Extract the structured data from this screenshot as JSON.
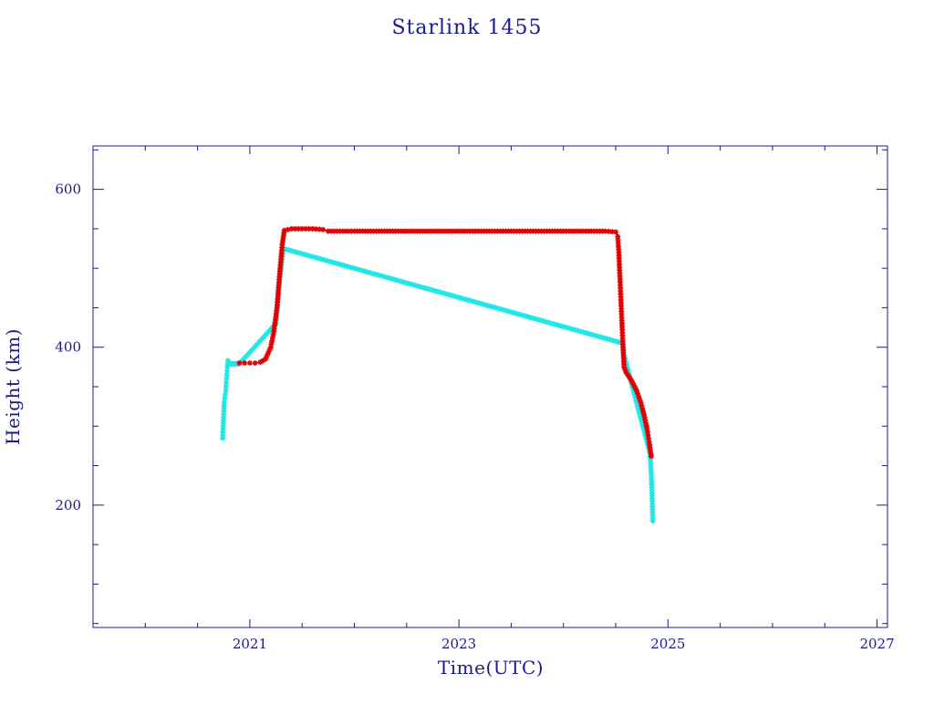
{
  "chart_data": {
    "type": "scatter",
    "title": "Starlink 1455",
    "xlabel": "Time(UTC)",
    "ylabel": "Height (km)",
    "xlim": [
      2019.5,
      2027.1
    ],
    "ylim": [
      45,
      655
    ],
    "x_ticks": [
      2021,
      2023,
      2025,
      2027
    ],
    "x_tick_labels": [
      "2021",
      "2023",
      "2025",
      "2027"
    ],
    "x_minor_step": 0.5,
    "y_ticks": [
      200,
      400,
      600
    ],
    "y_tick_labels": [
      "200",
      "400",
      "600"
    ],
    "y_minor_step": 50,
    "grid": false,
    "colors": {
      "axis": "#1a1a8c",
      "text": "#1a1a8c",
      "line": "#222222",
      "series_red": "#e00000",
      "series_cyan": "#22e6e6"
    },
    "series": [
      {
        "color": "cyan",
        "marker": "asterisk",
        "points": [
          [
            2020.74,
            285
          ],
          [
            2020.745,
            300
          ],
          [
            2020.75,
            315
          ],
          [
            2020.755,
            330
          ],
          [
            2020.76,
            335
          ],
          [
            2020.765,
            340
          ],
          [
            2020.77,
            345
          ],
          [
            2020.775,
            355
          ],
          [
            2020.78,
            365
          ],
          [
            2020.785,
            375
          ],
          [
            2020.79,
            383
          ],
          [
            2020.8,
            380
          ],
          [
            2020.81,
            379
          ],
          [
            2020.82,
            379
          ],
          [
            2020.83,
            379
          ],
          [
            2020.84,
            379
          ],
          [
            2020.85,
            379
          ],
          [
            2020.86,
            379
          ],
          [
            2020.87,
            379
          ],
          [
            2020.88,
            379
          ],
          [
            2020.89,
            379
          ],
          [
            2020.9,
            379
          ],
          [
            2021.25,
            430
          ],
          [
            2021.28,
            480
          ],
          [
            2021.32,
            525
          ],
          [
            2024.57,
            405
          ],
          [
            2024.58,
            390
          ],
          [
            2024.83,
            265
          ],
          [
            2024.84,
            240
          ],
          [
            2024.85,
            205
          ],
          [
            2024.855,
            180
          ]
        ]
      },
      {
        "color": "red",
        "marker": "asterisk",
        "points": [
          [
            2020.9,
            380
          ],
          [
            2020.95,
            380
          ],
          [
            2021.0,
            380
          ],
          [
            2021.05,
            380
          ],
          [
            2021.1,
            381
          ],
          [
            2021.15,
            385
          ],
          [
            2021.2,
            400
          ],
          [
            2021.23,
            420
          ],
          [
            2021.26,
            450
          ],
          [
            2021.29,
            500
          ],
          [
            2021.31,
            530
          ],
          [
            2021.33,
            548
          ],
          [
            2021.4,
            550
          ],
          [
            2021.5,
            550
          ],
          [
            2021.6,
            550
          ],
          [
            2021.7,
            549
          ],
          [
            2021.75,
            547
          ],
          [
            2022.0,
            547
          ],
          [
            2022.5,
            547
          ],
          [
            2023.0,
            547
          ],
          [
            2023.5,
            547
          ],
          [
            2024.0,
            547
          ],
          [
            2024.4,
            547
          ],
          [
            2024.5,
            546
          ],
          [
            2024.52,
            540
          ],
          [
            2024.53,
            520
          ],
          [
            2024.54,
            490
          ],
          [
            2024.55,
            460
          ],
          [
            2024.56,
            430
          ],
          [
            2024.57,
            400
          ],
          [
            2024.58,
            375
          ],
          [
            2024.6,
            368
          ],
          [
            2024.65,
            358
          ],
          [
            2024.7,
            345
          ],
          [
            2024.74,
            330
          ],
          [
            2024.77,
            315
          ],
          [
            2024.8,
            297
          ],
          [
            2024.82,
            280
          ],
          [
            2024.84,
            262
          ]
        ]
      }
    ]
  }
}
